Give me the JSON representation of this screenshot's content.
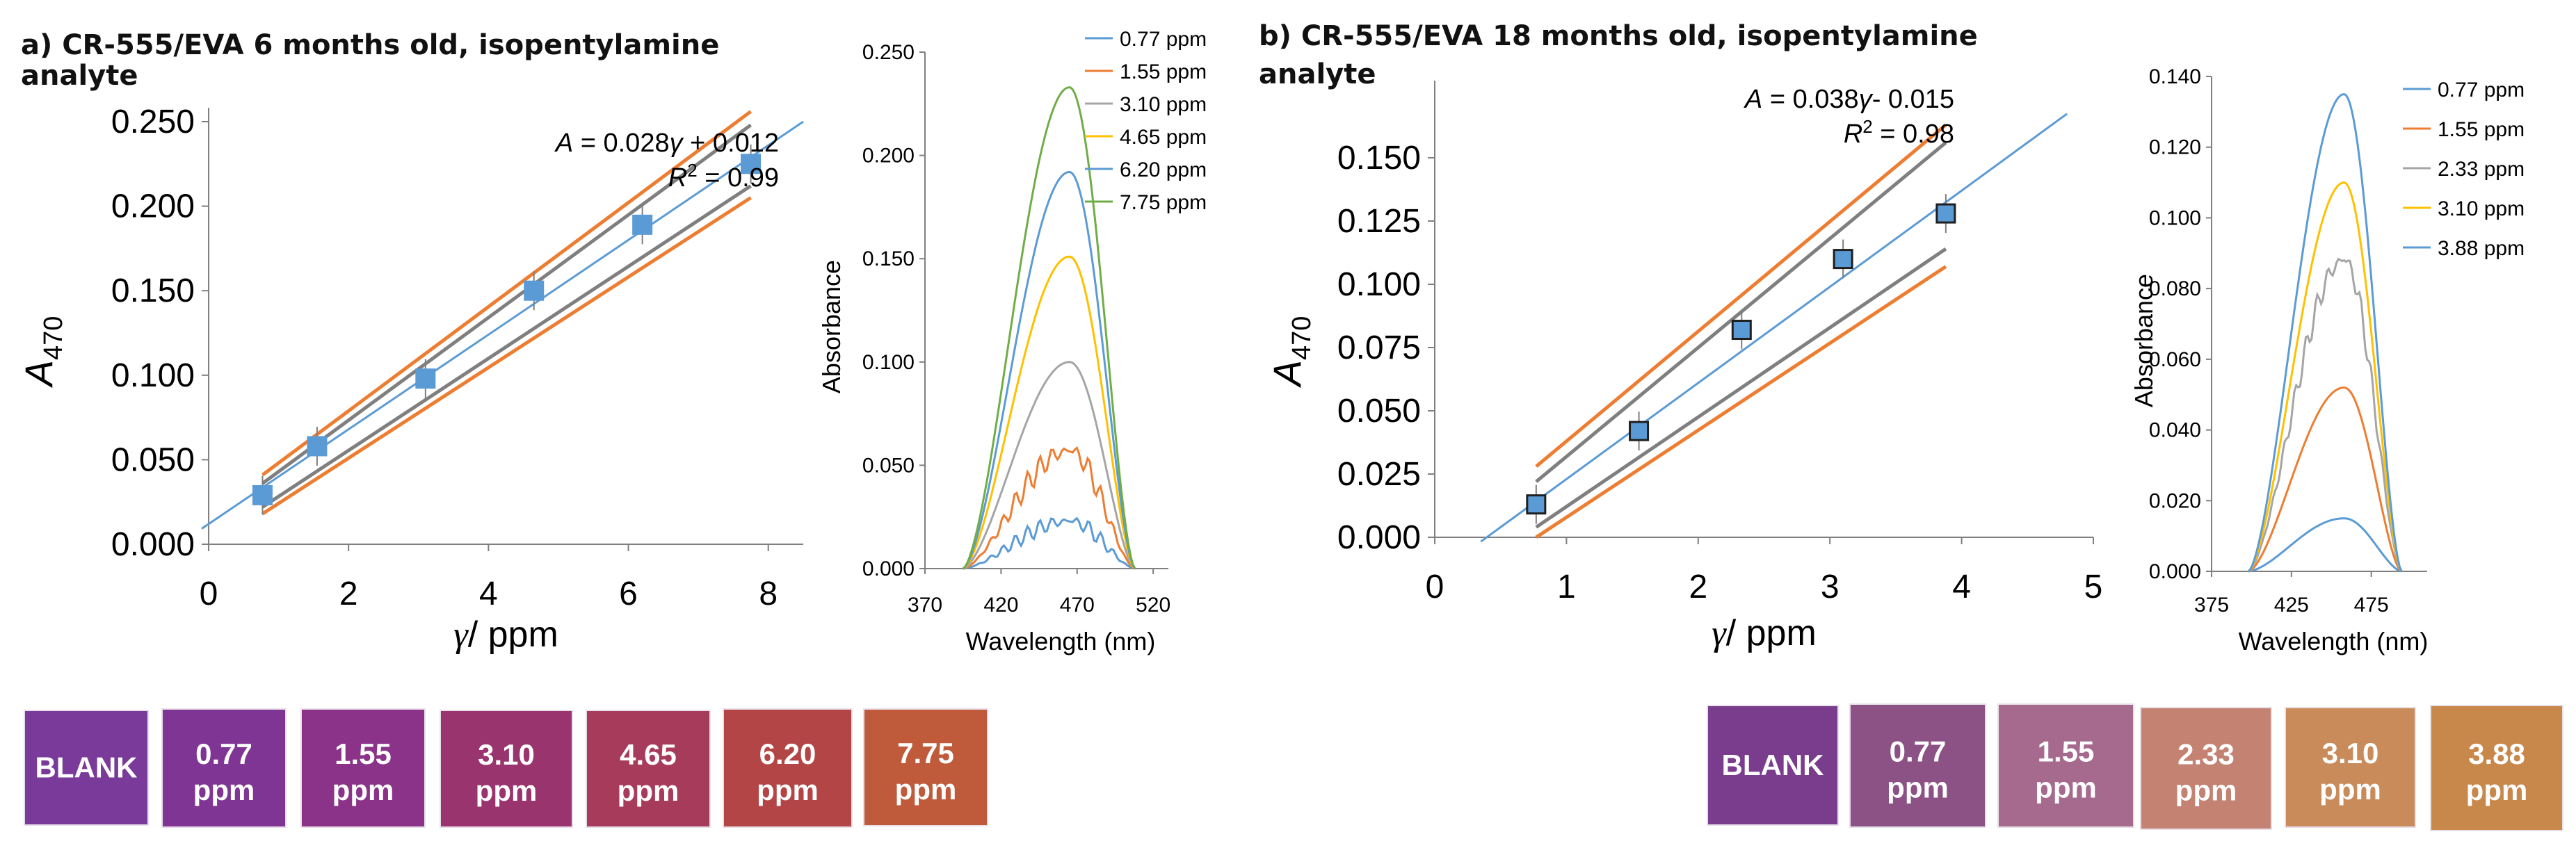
{
  "figure_a": {
    "title_line1": "a) CR-555/EVA 6 months old, isopentylamine",
    "title_line2": "analyte"
  },
  "figure_b": {
    "title_line1": "b) CR-555/EVA 18 months old, isopentylamine",
    "title_line2": "analyte"
  },
  "colors": {
    "blue": "#5b9bd5",
    "orange": "#ed7d31",
    "gray": "#a5a5a5",
    "dark_gray": "#7f7f7f",
    "yellow": "#ffc000",
    "green": "#70ad47",
    "marker": "#5b9bd5"
  },
  "chart_data": [
    {
      "id": "a-calibration",
      "type": "scatter",
      "title": "",
      "xlabel_symbol": "γ",
      "xlabel_unit": "/ ppm",
      "ylabel_main": "A",
      "ylabel_sub": "470",
      "xlim": [
        0,
        8.5
      ],
      "ylim": [
        0,
        0.25
      ],
      "xticks": [
        "0",
        "2",
        "4",
        "6",
        "8"
      ],
      "xtick_values": [
        0,
        2,
        4,
        6,
        8
      ],
      "yticks": [
        "0.000",
        "0.050",
        "0.100",
        "0.150",
        "0.200",
        "0.250"
      ],
      "ytick_values": [
        0,
        0.05,
        0.1,
        0.15,
        0.2,
        0.25
      ],
      "x": [
        0.77,
        1.55,
        3.1,
        4.65,
        6.2,
        7.75
      ],
      "y": [
        0.029,
        0.058,
        0.098,
        0.15,
        0.189,
        0.225
      ],
      "marker_edge": "#5b9bd5",
      "fit": {
        "slope": 0.028,
        "intercept": 0.012,
        "x_range": [
          -0.1,
          8.5
        ]
      },
      "confidence_lines": [
        {
          "color": "#ed7d31",
          "x": [
            0.77,
            7.75
          ],
          "y": [
            0.041,
            0.256
          ]
        },
        {
          "color": "#7f7f7f",
          "x": [
            0.77,
            7.75
          ],
          "y": [
            0.036,
            0.248
          ]
        },
        {
          "color": "#7f7f7f",
          "x": [
            0.77,
            7.75
          ],
          "y": [
            0.022,
            0.212
          ]
        },
        {
          "color": "#ed7d31",
          "x": [
            0.77,
            7.75
          ],
          "y": [
            0.018,
            0.205
          ]
        }
      ],
      "equation_parts": [
        "A",
        " = 0.028",
        "γ",
        " + 0.012"
      ],
      "r2_parts": [
        "R",
        "2",
        " = 0.99"
      ]
    },
    {
      "id": "a-spectra",
      "type": "line",
      "xlabel": "Wavelength (nm)",
      "ylabel": "Absorbance",
      "xlim": [
        370,
        530
      ],
      "ylim": [
        0,
        0.25
      ],
      "xticks": [
        "370",
        "420",
        "470",
        "520"
      ],
      "xtick_values": [
        370,
        420,
        470,
        520
      ],
      "yticks": [
        "0.000",
        "0.050",
        "0.100",
        "0.150",
        "0.200",
        "0.250"
      ],
      "ytick_values": [
        0,
        0.05,
        0.1,
        0.15,
        0.2,
        0.25
      ],
      "peak_x": 465,
      "range": [
        395,
        508
      ],
      "wobble": [
        0.25,
        0.15,
        0,
        0,
        0,
        0
      ],
      "series": [
        {
          "name": "0.77 ppm",
          "color": "#5b9bd5",
          "peak": 0.023
        },
        {
          "name": "1.55 ppm",
          "color": "#ed7d31",
          "peak": 0.057
        },
        {
          "name": "3.10 ppm",
          "color": "#a5a5a5",
          "peak": 0.1
        },
        {
          "name": "4.65 ppm",
          "color": "#ffc000",
          "peak": 0.151
        },
        {
          "name": "6.20 ppm",
          "color": "#5b9bd5",
          "peak": 0.192
        },
        {
          "name": "7.75 ppm",
          "color": "#70ad47",
          "peak": 0.233
        }
      ]
    },
    {
      "id": "b-calibration",
      "type": "scatter",
      "title": "",
      "xlabel_symbol": "γ",
      "xlabel_unit": "/ ppm",
      "ylabel_main": "A",
      "ylabel_sub": "470",
      "xlim": [
        0,
        5
      ],
      "ylim": [
        0,
        0.175
      ],
      "xticks": [
        "0",
        "1",
        "2",
        "3",
        "4",
        "5"
      ],
      "xtick_values": [
        0,
        1,
        2,
        3,
        4,
        5
      ],
      "yticks": [
        "0.000",
        "0.025",
        "0.050",
        "0.075",
        "0.100",
        "0.125",
        "0.150"
      ],
      "ytick_values": [
        0,
        0.025,
        0.05,
        0.075,
        0.1,
        0.125,
        0.15
      ],
      "x": [
        0.77,
        1.55,
        2.33,
        3.1,
        3.88
      ],
      "y": [
        0.013,
        0.042,
        0.082,
        0.11,
        0.128
      ],
      "marker_edge": "#1f1f1f",
      "fit": {
        "slope": 0.038,
        "intercept": -0.015,
        "x_range": [
          0.35,
          4.8
        ]
      },
      "confidence_lines": [
        {
          "color": "#ed7d31",
          "x": [
            0.77,
            3.88
          ],
          "y": [
            0.028,
            0.163
          ]
        },
        {
          "color": "#7f7f7f",
          "x": [
            0.77,
            3.88
          ],
          "y": [
            0.022,
            0.156
          ]
        },
        {
          "color": "#7f7f7f",
          "x": [
            0.77,
            3.88
          ],
          "y": [
            0.004,
            0.114
          ]
        },
        {
          "color": "#ed7d31",
          "x": [
            0.77,
            3.88
          ],
          "y": [
            0.0,
            0.107
          ]
        }
      ],
      "equation_parts": [
        "A",
        " = 0.038",
        "γ",
        "- 0.015"
      ],
      "r2_parts": [
        "R",
        "2",
        " = 0.98"
      ]
    },
    {
      "id": "b-spectra",
      "type": "line",
      "xlabel": "Wavelength (nm)",
      "ylabel": "Absorbance",
      "xlim": [
        375,
        510
      ],
      "ylim": [
        0,
        0.14
      ],
      "xticks": [
        "375",
        "425",
        "475"
      ],
      "xtick_values": [
        375,
        425,
        475
      ],
      "yticks": [
        "0.000",
        "0.020",
        "0.040",
        "0.060",
        "0.080",
        "0.100",
        "0.120",
        "0.140"
      ],
      "ytick_values": [
        0,
        0.02,
        0.04,
        0.06,
        0.08,
        0.1,
        0.12,
        0.14
      ],
      "peak_x": 458,
      "range": [
        398,
        494
      ],
      "wobble": [
        0,
        0,
        0.06,
        0,
        0
      ],
      "series": [
        {
          "name": "0.77 ppm",
          "color": "#5b9bd5",
          "peak": 0.015
        },
        {
          "name": "1.55 ppm",
          "color": "#ed7d31",
          "peak": 0.052
        },
        {
          "name": "2.33 ppm",
          "color": "#a5a5a5",
          "peak": 0.088
        },
        {
          "name": "3.10 ppm",
          "color": "#ffc000",
          "peak": 0.11
        },
        {
          "name": "3.88 ppm",
          "color": "#5b9bd5",
          "peak": 0.135
        }
      ]
    }
  ],
  "swatches_a": [
    {
      "line1": "BLANK",
      "line2": "",
      "color": "#7a3a9a"
    },
    {
      "line1": "0.77",
      "line2": "ppm",
      "color": "#7f3594"
    },
    {
      "line1": "1.55",
      "line2": "ppm",
      "color": "#8a3389"
    },
    {
      "line1": "3.10",
      "line2": "ppm",
      "color": "#99346f"
    },
    {
      "line1": "4.65",
      "line2": "ppm",
      "color": "#a73b5c"
    },
    {
      "line1": "6.20",
      "line2": "ppm",
      "color": "#b34546"
    },
    {
      "line1": "7.75",
      "line2": "ppm",
      "color": "#bf5a3a"
    }
  ],
  "swatches_b": [
    {
      "line1": "BLANK",
      "line2": "",
      "color": "#7a3d8e"
    },
    {
      "line1": "0.77",
      "line2": "ppm",
      "color": "#8c5285"
    },
    {
      "line1": "1.55",
      "line2": "ppm",
      "color": "#a56a8e"
    },
    {
      "line1": "2.33",
      "line2": "ppm",
      "color": "#c48272"
    },
    {
      "line1": "3.10",
      "line2": "ppm",
      "color": "#c98b5a"
    },
    {
      "line1": "3.88",
      "line2": "ppm",
      "color": "#c8874b"
    }
  ]
}
